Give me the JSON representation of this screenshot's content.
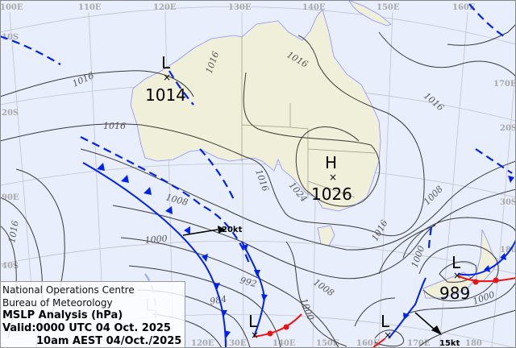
{
  "map": {
    "lon_labels_top": [
      "100E",
      "110E",
      "120E",
      "130E",
      "140E",
      "150E",
      "160E"
    ],
    "lat_labels_left": [
      "10S",
      "20S",
      "90E",
      "40S"
    ],
    "labels_right": [
      "170E",
      "20S",
      "30S",
      "180"
    ],
    "lon_labels_bottom": [
      "120E",
      "130E",
      "140E",
      "150E",
      "160E",
      "170E",
      "180"
    ],
    "isobar_labels": [
      "1016",
      "1016",
      "1016",
      "1016",
      "1016",
      "1016",
      "1024",
      "1016",
      "1008",
      "1000",
      "992",
      "984",
      "1000",
      "1008",
      "1000",
      "1008",
      "1000",
      "1016"
    ],
    "pressure_centres": [
      {
        "type": "L",
        "value": "1014"
      },
      {
        "type": "H",
        "value": "1026"
      },
      {
        "type": "L",
        "value": "989"
      },
      {
        "type": "L",
        "value": ""
      },
      {
        "type": "L",
        "value": ""
      },
      {
        "type": "L",
        "value": ""
      }
    ],
    "wind_arrows": [
      {
        "speed": "20kt"
      },
      {
        "speed": "15kt"
      }
    ],
    "colors": {
      "sea": "#e8eefc",
      "land": "#f0efd9",
      "cold_front": "#0022ee",
      "warm_front": "#ee1111",
      "isobar": "#3a3a3a"
    }
  },
  "info": {
    "line1": "National Operations Centre",
    "line2": "Bureau of Meteorology",
    "title": "MSLP Analysis (hPa)",
    "valid": "Valid:0000 UTC 04 Oct. 2025",
    "local": "10am AEST 04/Oct./2025"
  }
}
